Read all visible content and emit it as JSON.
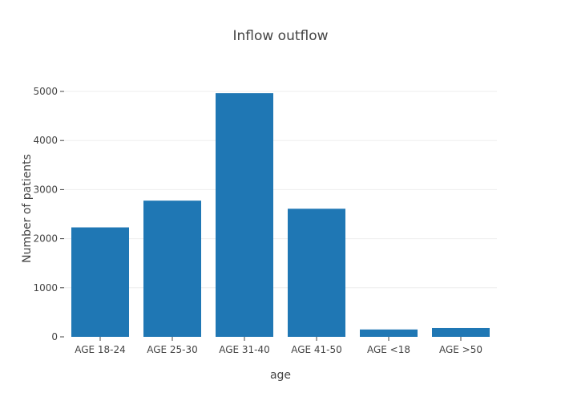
{
  "chart_data": {
    "type": "bar",
    "title": "Inflow outflow",
    "xlabel": "age",
    "ylabel": "Number of patients",
    "categories": [
      "AGE 18-24",
      "AGE 25-30",
      "AGE 31-40",
      "AGE 41-50",
      "AGE <18",
      "AGE >50"
    ],
    "values": [
      2230,
      2775,
      4965,
      2610,
      150,
      180
    ],
    "ylim": [
      0,
      5000
    ],
    "yticks": [
      0,
      1000,
      2000,
      3000,
      4000,
      5000
    ],
    "grid": true,
    "legend": "none",
    "bar_color": "#1f77b4"
  }
}
